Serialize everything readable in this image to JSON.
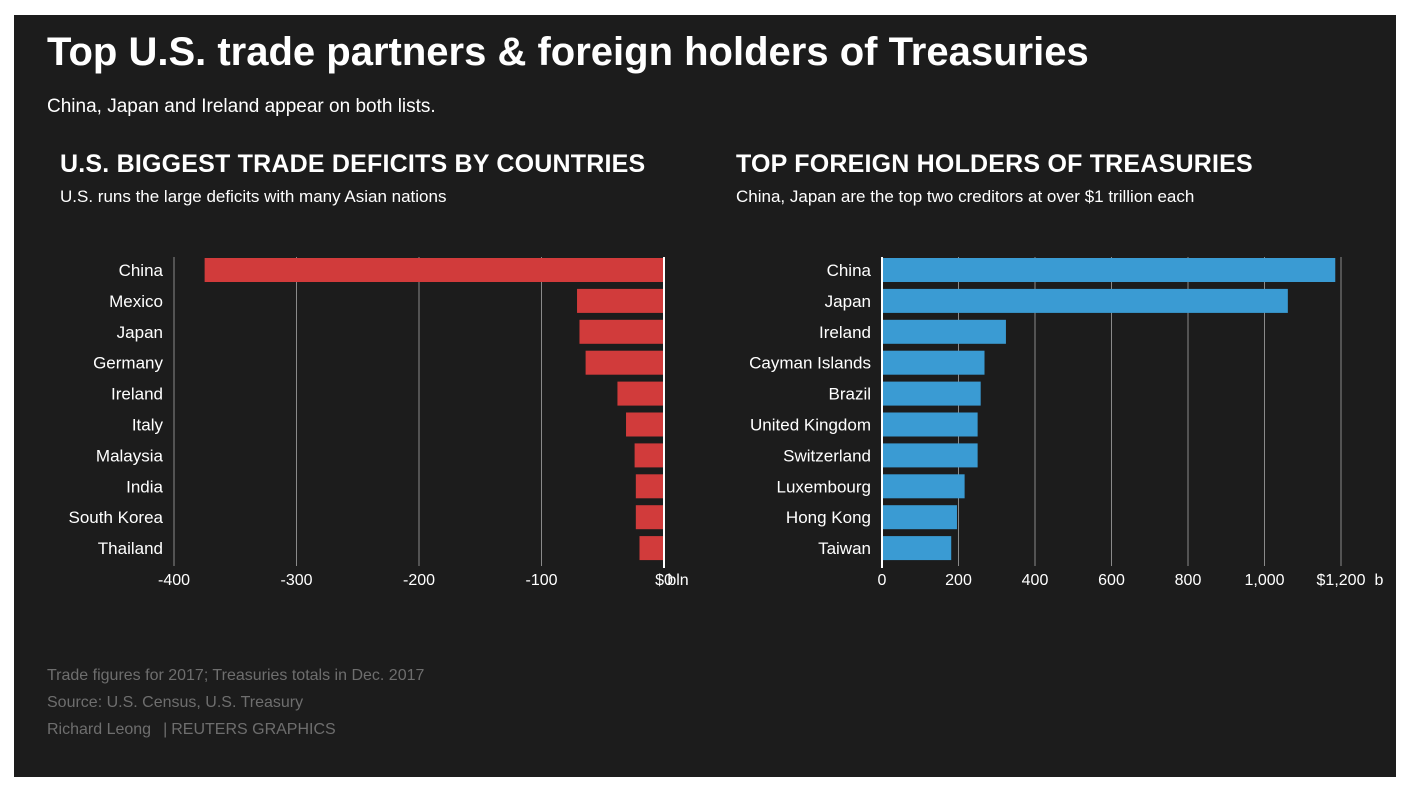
{
  "title": "Top U.S. trade partners & foreign holders of Treasuries",
  "subtitle": "China, Japan and Ireland appear on both lists.",
  "colors": {
    "background": "#1c1c1c",
    "deficit_bar": "#d13b3b",
    "holder_bar": "#3a9bd3",
    "grid": "#8a8a8a",
    "text": "#ffffff",
    "muted": "#6e6e6e"
  },
  "chart_data": [
    {
      "type": "bar",
      "orientation": "horizontal",
      "title": "U.S. BIGGEST TRADE DEFICITS BY COUNTRIES",
      "subtitle": "U.S. runs the large deficits with many Asian nations",
      "categories": [
        "China",
        "Mexico",
        "Japan",
        "Germany",
        "Ireland",
        "Italy",
        "Malaysia",
        "India",
        "South Korea",
        "Thailand"
      ],
      "values": [
        -375,
        -71,
        -69,
        -64,
        -38,
        -31,
        -24,
        -23,
        -23,
        -20
      ],
      "xlim": [
        -400,
        0
      ],
      "ticks": [
        -400,
        -300,
        -200,
        -100,
        0
      ],
      "tick_labels": [
        "-400",
        "-300",
        "-200",
        "-100",
        "$0"
      ],
      "unit_label": "bln",
      "grid": true
    },
    {
      "type": "bar",
      "orientation": "horizontal",
      "title": "TOP FOREIGN HOLDERS OF TREASURIES",
      "subtitle": "China, Japan are the top two creditors at over $1 trillion each",
      "categories": [
        "China",
        "Japan",
        "Ireland",
        "Cayman Islands",
        "Brazil",
        "United Kingdom",
        "Switzerland",
        "Luxembourg",
        "Hong Kong",
        "Taiwan"
      ],
      "values": [
        1185,
        1061,
        324,
        268,
        258,
        250,
        250,
        216,
        196,
        181
      ],
      "xlim": [
        0,
        1200
      ],
      "ticks": [
        0,
        200,
        400,
        600,
        800,
        1000,
        1200
      ],
      "tick_labels": [
        "0",
        "200",
        "400",
        "600",
        "800",
        "1,000",
        "$1,200"
      ],
      "unit_label": "b",
      "grid": true
    }
  ],
  "footer": {
    "note": "Trade figures for 2017; Treasuries totals in Dec. 2017",
    "source": "Source: U.S. Census, U.S. Treasury",
    "author": "Richard Leong",
    "separator": "|",
    "credit": "REUTERS GRAPHICS"
  }
}
